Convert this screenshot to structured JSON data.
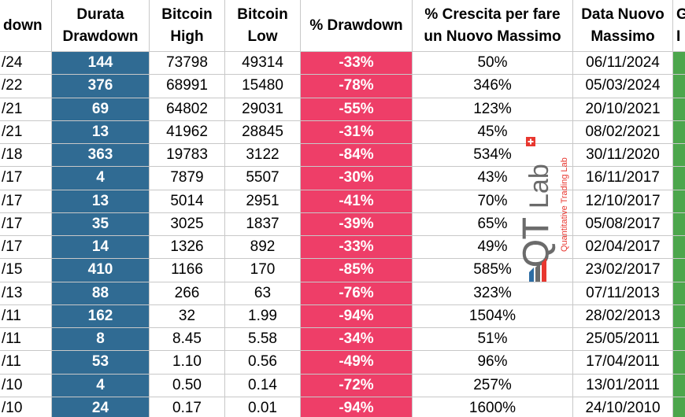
{
  "table": {
    "headers": [
      {
        "lines": [
          "down"
        ]
      },
      {
        "lines": [
          "Durata",
          "Drawdown"
        ]
      },
      {
        "lines": [
          "Bitcoin",
          "High"
        ]
      },
      {
        "lines": [
          "Bitcoin",
          "Low"
        ]
      },
      {
        "lines": [
          "% Drawdown"
        ]
      },
      {
        "lines": [
          "% Crescita per fare",
          "un Nuovo Massimo"
        ]
      },
      {
        "lines": [
          "Data Nuovo",
          "Massimo"
        ]
      },
      {
        "lines": [
          "G",
          "I"
        ]
      }
    ],
    "rows": [
      [
        "/24",
        "144",
        "73798",
        "49314",
        "-33%",
        "50%",
        "06/11/2024"
      ],
      [
        "/22",
        "376",
        "68991",
        "15480",
        "-78%",
        "346%",
        "05/03/2024"
      ],
      [
        "/21",
        "69",
        "64802",
        "29031",
        "-55%",
        "123%",
        "20/10/2021"
      ],
      [
        "/21",
        "13",
        "41962",
        "28845",
        "-31%",
        "45%",
        "08/02/2021"
      ],
      [
        "/18",
        "363",
        "19783",
        "3122",
        "-84%",
        "534%",
        "30/11/2020"
      ],
      [
        "/17",
        "4",
        "7879",
        "5507",
        "-30%",
        "43%",
        "16/11/2017"
      ],
      [
        "/17",
        "13",
        "5014",
        "2951",
        "-41%",
        "70%",
        "12/10/2017"
      ],
      [
        "/17",
        "35",
        "3025",
        "1837",
        "-39%",
        "65%",
        "05/08/2017"
      ],
      [
        "/17",
        "14",
        "1326",
        "892",
        "-33%",
        "49%",
        "02/04/2017"
      ],
      [
        "/15",
        "410",
        "1166",
        "170",
        "-85%",
        "585%",
        "23/02/2017"
      ],
      [
        "/13",
        "88",
        "266",
        "63",
        "-76%",
        "323%",
        "07/11/2013"
      ],
      [
        "/11",
        "162",
        "32",
        "1.99",
        "-94%",
        "1504%",
        "28/02/2013"
      ],
      [
        "/11",
        "8",
        "8.45",
        "5.58",
        "-34%",
        "51%",
        "25/05/2011"
      ],
      [
        "/11",
        "53",
        "1.10",
        "0.56",
        "-49%",
        "96%",
        "17/04/2011"
      ],
      [
        "/10",
        "4",
        "0.50",
        "0.14",
        "-72%",
        "257%",
        "13/01/2011"
      ],
      [
        "/10",
        "24",
        "0.17",
        "0.01",
        "-94%",
        "1600%",
        "24/10/2010"
      ]
    ]
  },
  "colors": {
    "duration": "#306b93",
    "drawdown": "#ee3e68",
    "extra_column": "#4ca64c",
    "logo_red": "#e8372f",
    "logo_blue": "#2e6da4",
    "logo_gray": "#6b6b6b"
  },
  "logo": {
    "mark": "QT",
    "word": "Lab",
    "tagline": "Quantitative Trading Lab"
  },
  "chart_data": {
    "type": "table",
    "columns": [
      "down",
      "Durata Drawdown",
      "Bitcoin High",
      "Bitcoin Low",
      "% Drawdown",
      "% Crescita per fare un Nuovo Massimo",
      "Data Nuovo Massimo"
    ],
    "rows": [
      [
        "/24",
        144,
        73798,
        49314,
        "-33%",
        "50%",
        "06/11/2024"
      ],
      [
        "/22",
        376,
        68991,
        15480,
        "-78%",
        "346%",
        "05/03/2024"
      ],
      [
        "/21",
        69,
        64802,
        29031,
        "-55%",
        "123%",
        "20/10/2021"
      ],
      [
        "/21",
        13,
        41962,
        28845,
        "-31%",
        "45%",
        "08/02/2021"
      ],
      [
        "/18",
        363,
        19783,
        3122,
        "-84%",
        "534%",
        "30/11/2020"
      ],
      [
        "/17",
        4,
        7879,
        5507,
        "-30%",
        "43%",
        "16/11/2017"
      ],
      [
        "/17",
        13,
        5014,
        2951,
        "-41%",
        "70%",
        "12/10/2017"
      ],
      [
        "/17",
        35,
        3025,
        1837,
        "-39%",
        "65%",
        "05/08/2017"
      ],
      [
        "/17",
        14,
        1326,
        892,
        "-33%",
        "49%",
        "02/04/2017"
      ],
      [
        "/15",
        410,
        1166,
        170,
        "-85%",
        "585%",
        "23/02/2017"
      ],
      [
        "/13",
        88,
        266,
        63,
        "-76%",
        "323%",
        "07/11/2013"
      ],
      [
        "/11",
        162,
        32,
        1.99,
        "-94%",
        "1504%",
        "28/02/2013"
      ],
      [
        "/11",
        8,
        8.45,
        5.58,
        "-34%",
        "51%",
        "25/05/2011"
      ],
      [
        "/11",
        53,
        1.1,
        0.56,
        "-49%",
        "96%",
        "17/04/2011"
      ],
      [
        "/10",
        4,
        0.5,
        0.14,
        "-72%",
        "257%",
        "13/01/2011"
      ],
      [
        "/10",
        24,
        0.17,
        0.01,
        "-94%",
        "1600%",
        "24/10/2010"
      ]
    ]
  }
}
